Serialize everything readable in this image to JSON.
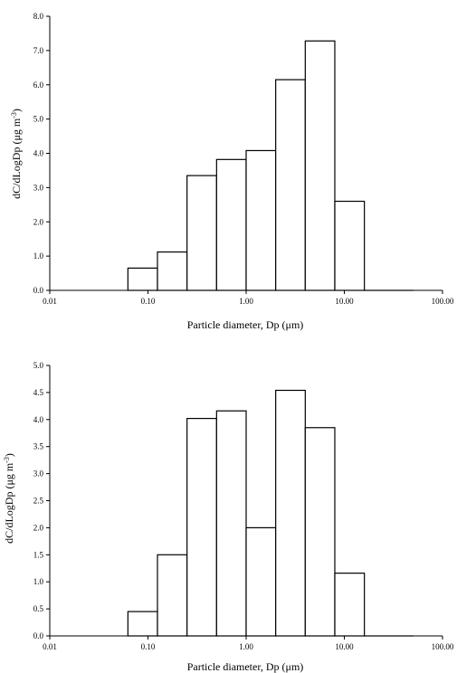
{
  "chart_data": [
    {
      "type": "bar",
      "xscale": "log",
      "xlim": [
        0.01,
        100.0
      ],
      "ylim": [
        0,
        8.0
      ],
      "xticks": [
        "0.01",
        "0.10",
        "1.00",
        "10.00",
        "100.00"
      ],
      "yticks": [
        "0.0",
        "1.0",
        "2.0",
        "3.0",
        "4.0",
        "5.0",
        "6.0",
        "7.0",
        "8.0"
      ],
      "xlabel": "Particle diameter, Dp (μm)",
      "ylabel": "dC/dLogDp (μg m",
      "ylabel_sup": "-3",
      "ylabel_end": ")",
      "grid": false,
      "bins": [
        {
          "x0": 0.0625,
          "x1": 0.125,
          "value": 0.65
        },
        {
          "x0": 0.125,
          "x1": 0.25,
          "value": 1.12
        },
        {
          "x0": 0.25,
          "x1": 0.5,
          "value": 3.35
        },
        {
          "x0": 0.5,
          "x1": 1.0,
          "value": 3.82
        },
        {
          "x0": 1.0,
          "x1": 2.0,
          "value": 4.08
        },
        {
          "x0": 2.0,
          "x1": 4.0,
          "value": 6.15
        },
        {
          "x0": 4.0,
          "x1": 8.0,
          "value": 7.28
        },
        {
          "x0": 8.0,
          "x1": 16.0,
          "value": 2.6
        },
        {
          "x0": 16.0,
          "x1": 50.0,
          "value": 0.0
        }
      ]
    },
    {
      "type": "bar",
      "xscale": "log",
      "xlim": [
        0.01,
        100.0
      ],
      "ylim": [
        0,
        5.0
      ],
      "xticks": [
        "0.01",
        "0.10",
        "1.00",
        "10.00",
        "100.00"
      ],
      "yticks": [
        "0.0",
        "0.5",
        "1.0",
        "1.5",
        "2.0",
        "2.5",
        "3.0",
        "3.5",
        "4.0",
        "4.5",
        "5.0"
      ],
      "xlabel": "Particle diameter, Dp (μm)",
      "ylabel": "dC/dLogDp (μg m",
      "ylabel_sup": "-3",
      "ylabel_end": ")",
      "grid": false,
      "bins": [
        {
          "x0": 0.0625,
          "x1": 0.125,
          "value": 0.45
        },
        {
          "x0": 0.125,
          "x1": 0.25,
          "value": 1.5
        },
        {
          "x0": 0.25,
          "x1": 0.5,
          "value": 4.02
        },
        {
          "x0": 0.5,
          "x1": 1.0,
          "value": 4.16
        },
        {
          "x0": 1.0,
          "x1": 2.0,
          "value": 2.0
        },
        {
          "x0": 2.0,
          "x1": 4.0,
          "value": 4.54
        },
        {
          "x0": 4.0,
          "x1": 8.0,
          "value": 3.85
        },
        {
          "x0": 8.0,
          "x1": 16.0,
          "value": 1.16
        },
        {
          "x0": 16.0,
          "x1": 50.0,
          "value": 0.0
        }
      ]
    }
  ]
}
